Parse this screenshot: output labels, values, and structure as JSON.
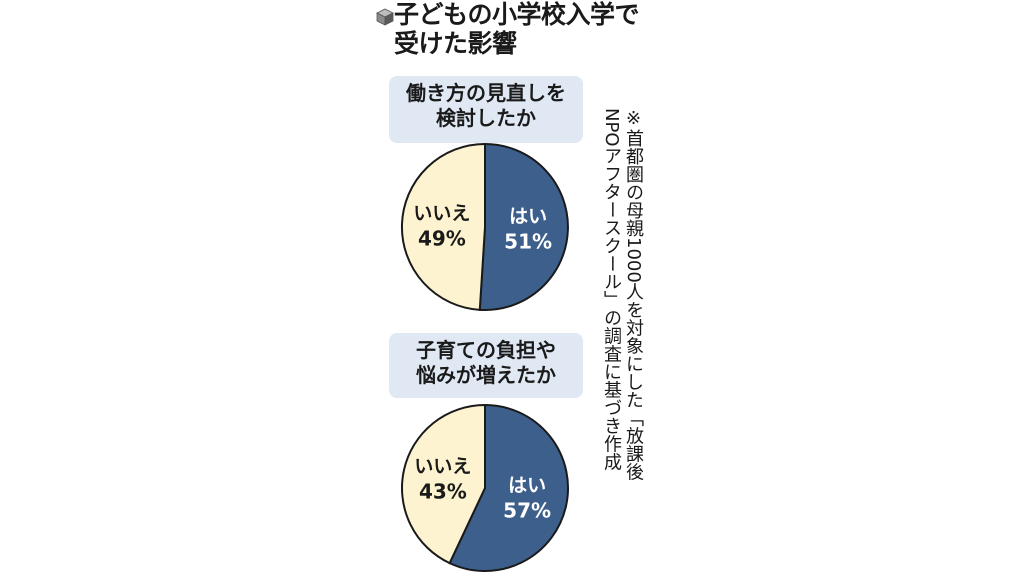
{
  "header": {
    "icon": "cube-icon",
    "title_lines": [
      "子どもの小学校入学で",
      "受けた影響"
    ]
  },
  "colors": {
    "yes": "#3d5f8c",
    "no": "#fdf3d0",
    "question_bg": "#dfe8f3",
    "outline": "#1a1a1a"
  },
  "note": {
    "lines": [
      "※首都圏の母親1000人を対象にした「放課後",
      "NPOアフタースクール」の調査に基づき作成"
    ]
  },
  "chart_data": [
    {
      "type": "pie",
      "title_lines": [
        "働き方の見直しを",
        "検討したか"
      ],
      "slices": [
        {
          "label": "はい",
          "value": 51,
          "value_label": "51%"
        },
        {
          "label": "いいえ",
          "value": 49,
          "value_label": "49%"
        }
      ]
    },
    {
      "type": "pie",
      "title_lines": [
        "子育ての負担や",
        "悩みが増えたか"
      ],
      "slices": [
        {
          "label": "はい",
          "value": 57,
          "value_label": "57%"
        },
        {
          "label": "いいえ",
          "value": 43,
          "value_label": "43%"
        }
      ]
    }
  ]
}
